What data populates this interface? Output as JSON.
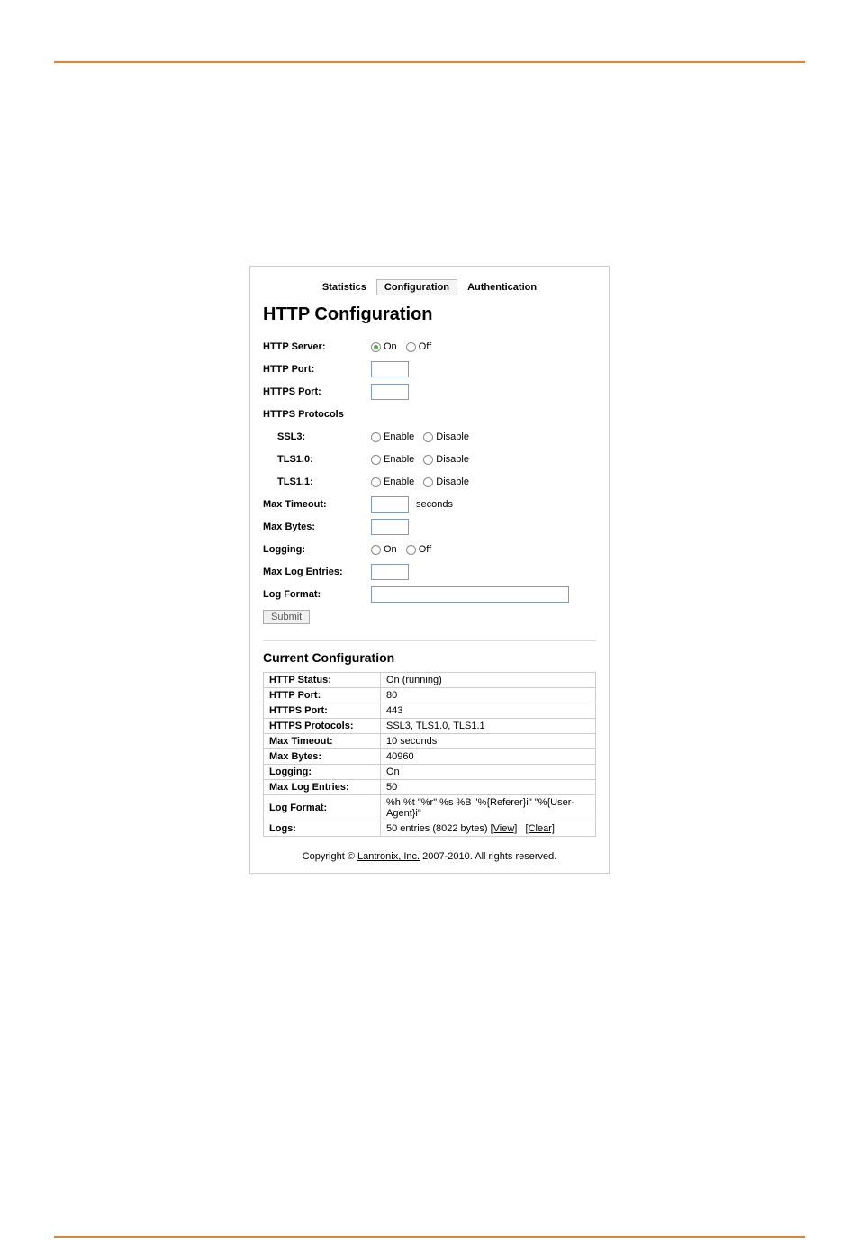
{
  "tabs": {
    "statistics": "Statistics",
    "configuration": "Configuration",
    "authentication": "Authentication"
  },
  "title": "HTTP Configuration",
  "form": {
    "http_server": {
      "label": "HTTP Server:",
      "on": "On",
      "off": "Off"
    },
    "http_port": {
      "label": "HTTP Port:"
    },
    "https_port": {
      "label": "HTTPS Port:"
    },
    "https_protocols": {
      "label": "HTTPS Protocols"
    },
    "ssl3": {
      "label": "SSL3:",
      "enable": "Enable",
      "disable": "Disable"
    },
    "tls10": {
      "label": "TLS1.0:",
      "enable": "Enable",
      "disable": "Disable"
    },
    "tls11": {
      "label": "TLS1.1:",
      "enable": "Enable",
      "disable": "Disable"
    },
    "max_timeout": {
      "label": "Max Timeout:",
      "unit": "seconds"
    },
    "max_bytes": {
      "label": "Max Bytes:"
    },
    "logging": {
      "label": "Logging:",
      "on": "On",
      "off": "Off"
    },
    "max_log_entries": {
      "label": "Max Log Entries:"
    },
    "log_format": {
      "label": "Log Format:"
    },
    "submit": "Submit"
  },
  "current": {
    "title": "Current Configuration",
    "rows": {
      "http_status": {
        "label": "HTTP Status:",
        "value": "On (running)"
      },
      "http_port": {
        "label": "HTTP Port:",
        "value": "80"
      },
      "https_port": {
        "label": "HTTPS Port:",
        "value": "443"
      },
      "https_protocols": {
        "label": "HTTPS Protocols:",
        "value": "SSL3, TLS1.0, TLS1.1"
      },
      "max_timeout": {
        "label": "Max Timeout:",
        "value": "10 seconds"
      },
      "max_bytes": {
        "label": "Max Bytes:",
        "value": "40960"
      },
      "logging": {
        "label": "Logging:",
        "value": "On"
      },
      "max_log_entries": {
        "label": "Max Log Entries:",
        "value": "50"
      },
      "log_format": {
        "label": "Log Format:",
        "value": "%h %t \"%r\" %s %B \"%{Referer}i\" \"%{User-Agent}i\""
      },
      "logs": {
        "label": "Logs:",
        "value": "50 entries (8022 bytes)  ",
        "view": "[View]",
        "clear": "[Clear]"
      }
    }
  },
  "footer": {
    "prefix": "Copyright © ",
    "link": "Lantronix, Inc.",
    "suffix": " 2007-2010. All rights reserved."
  },
  "colors": {
    "accent": "#ed7d31",
    "border": "#cccccc",
    "input_border": "#7f9db9"
  }
}
